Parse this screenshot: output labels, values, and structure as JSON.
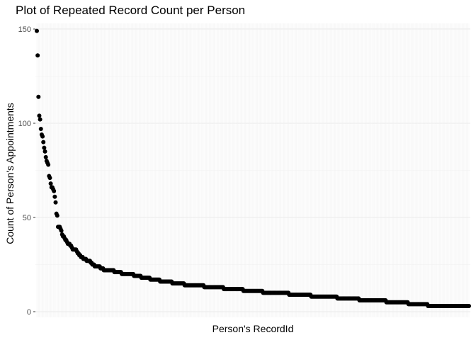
{
  "chart_data": {
    "type": "scatter",
    "title": "Plot of Repeated Record Count per Person",
    "xlabel": "Person's RecordId",
    "ylabel": "Count of Person's Appointments",
    "ylim": [
      -3,
      153
    ],
    "yticks": [
      0,
      50,
      100,
      150
    ],
    "grid": true,
    "legend": "none",
    "point_color": "#000000",
    "panel_background": "#ffffff",
    "x_tick_labels": "none",
    "x_category_count": 500,
    "series": [
      {
        "x_description": "persons ranked by descending appointment count (categorical, unlabeled)",
        "values": [
          149,
          136,
          114,
          104,
          102,
          97,
          94,
          93,
          90,
          87,
          85,
          82,
          80,
          79,
          78,
          72,
          71,
          68,
          66,
          66,
          65,
          64,
          61,
          58,
          52,
          51,
          45,
          45,
          45,
          44,
          43,
          41,
          40,
          40,
          39,
          38,
          38,
          37,
          36,
          36,
          36,
          35,
          35,
          34,
          33,
          33,
          33,
          33,
          33,
          32,
          31,
          31,
          30,
          30,
          29,
          29,
          29,
          28,
          28,
          28,
          28,
          27,
          27,
          27,
          27,
          27,
          26,
          26,
          25,
          25,
          25,
          24,
          24,
          24,
          24,
          24,
          24,
          24,
          23,
          23,
          23,
          23,
          22,
          22,
          22,
          22,
          22,
          22,
          22,
          22,
          22,
          22,
          22,
          22,
          22,
          21,
          21,
          21,
          21,
          21,
          21,
          21,
          21,
          21,
          20,
          20,
          20,
          20,
          20,
          20,
          20,
          20,
          20,
          20,
          20,
          20,
          20,
          20,
          20,
          19,
          19,
          19,
          19,
          19,
          19,
          19,
          19,
          19,
          18,
          18,
          18,
          18,
          18,
          18,
          18,
          18,
          18,
          18,
          18,
          17,
          17,
          17,
          17,
          17,
          17,
          17,
          17,
          17,
          17,
          17,
          17,
          16,
          16,
          16,
          16,
          16,
          16,
          16,
          16,
          16,
          16,
          16,
          16,
          16,
          16,
          16,
          15,
          15,
          15,
          15,
          15,
          15,
          15,
          15,
          15,
          15,
          15,
          15,
          15,
          15,
          15,
          14,
          14,
          14,
          14,
          14,
          14,
          14,
          14,
          14,
          14,
          14,
          14,
          14,
          14,
          14,
          14,
          14,
          14,
          14,
          14,
          14,
          14,
          14,
          14,
          13,
          13,
          13,
          13,
          13,
          13,
          13,
          13,
          13,
          13,
          13,
          13,
          13,
          13,
          13,
          13,
          13,
          13,
          13,
          13,
          13,
          13,
          13,
          13,
          12,
          12,
          12,
          12,
          12,
          12,
          12,
          12,
          12,
          12,
          12,
          12,
          12,
          12,
          12,
          12,
          12,
          12,
          12,
          12,
          12,
          12,
          12,
          12,
          11,
          11,
          11,
          11,
          11,
          11,
          11,
          11,
          11,
          11,
          11,
          11,
          11,
          11,
          11,
          11,
          11,
          11,
          11,
          11,
          11,
          11,
          11,
          11,
          10,
          10,
          10,
          10,
          10,
          10,
          10,
          10,
          10,
          10,
          10,
          10,
          10,
          10,
          10,
          10,
          10,
          10,
          10,
          10,
          10,
          10,
          10,
          10,
          10,
          10,
          10,
          10,
          10,
          10,
          10,
          10,
          9,
          9,
          9,
          9,
          9,
          9,
          9,
          9,
          9,
          9,
          9,
          9,
          9,
          9,
          9,
          9,
          9,
          9,
          9,
          9,
          9,
          9,
          9,
          9,
          9,
          9,
          9,
          8,
          8,
          8,
          8,
          8,
          8,
          8,
          8,
          8,
          8,
          8,
          8,
          8,
          8,
          8,
          8,
          8,
          8,
          8,
          8,
          8,
          8,
          8,
          8,
          8,
          8,
          8,
          8,
          8,
          8,
          8,
          8,
          7,
          7,
          7,
          7,
          7,
          7,
          7,
          7,
          7,
          7,
          7,
          7,
          7,
          7,
          7,
          7,
          7,
          7,
          7,
          7,
          7,
          7,
          7,
          7,
          7,
          7,
          7,
          6,
          6,
          6,
          6,
          6,
          6,
          6,
          6,
          6,
          6,
          6,
          6,
          6,
          6,
          6,
          6,
          6,
          6,
          6,
          6,
          6,
          6,
          6,
          6,
          6,
          6,
          6,
          6,
          6,
          6,
          6,
          6,
          6,
          5,
          5,
          5,
          5,
          5,
          5,
          5,
          5,
          5,
          5,
          5,
          5,
          5,
          5,
          5,
          5,
          5,
          5,
          5,
          5,
          5,
          5,
          5,
          5,
          5,
          5,
          5,
          4,
          4,
          4,
          4,
          4,
          4,
          4,
          4,
          4,
          4,
          4,
          4,
          4,
          4,
          4,
          4,
          4,
          4,
          4,
          4,
          4,
          4,
          4,
          4,
          3,
          3,
          3,
          3,
          3,
          3,
          3,
          3,
          3,
          3,
          3,
          3,
          3,
          3,
          3,
          3,
          3,
          3,
          3,
          3,
          3,
          3,
          3,
          3,
          3,
          3,
          3,
          3,
          3,
          3,
          3,
          3,
          3,
          3,
          3,
          3,
          3,
          3,
          3,
          3,
          3,
          3,
          3,
          3,
          3,
          3,
          3,
          3,
          3,
          3,
          3
        ]
      }
    ]
  }
}
